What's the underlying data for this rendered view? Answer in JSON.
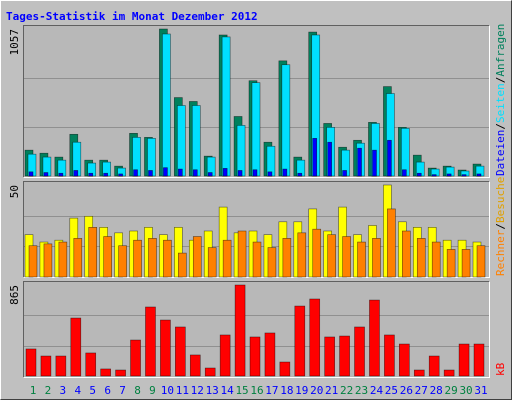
{
  "title": "Tages-Statistik im Monat Dezember 2012",
  "legend_separator": "/",
  "chart_data": [
    {
      "type": "bar",
      "ylim": [
        0,
        1057
      ],
      "yticks": [
        1057
      ],
      "series": [
        {
          "name": "Anfragen",
          "color": "#00805c",
          "values": [
            186,
            164,
            136,
            300,
            114,
            114,
            71,
            307,
            278,
            1057,
            564,
            536,
            143,
            1014,
            428,
            685,
            243,
            828,
            136,
            1035,
            378,
            207,
            257,
            386,
            643,
            350,
            150,
            57,
            71,
            43,
            86
          ]
        },
        {
          "name": "Seiten",
          "color": "#00e0ff",
          "values": [
            157,
            136,
            114,
            243,
            93,
            100,
            57,
            278,
            271,
            1021,
            507,
            507,
            136,
            1000,
            364,
            671,
            214,
            800,
            114,
            1014,
            350,
            186,
            236,
            378,
            593,
            343,
            100,
            50,
            64,
            36,
            71
          ]
        },
        {
          "name": "Dateien",
          "color": "#0000ff",
          "values": [
            30,
            25,
            20,
            40,
            20,
            20,
            15,
            45,
            40,
            60,
            50,
            45,
            25,
            55,
            40,
            45,
            30,
            50,
            20,
            271,
            243,
            40,
            200,
            186,
            257,
            45,
            20,
            10,
            15,
            10,
            15
          ]
        }
      ]
    },
    {
      "type": "bar",
      "ylim": [
        0,
        50
      ],
      "yticks": [
        50
      ],
      "series": [
        {
          "name": "Besuche",
          "color": "#ffff00",
          "text_color": "#e0a000",
          "values": [
            23,
            19,
            20,
            32,
            33,
            27,
            24,
            25,
            27,
            23,
            27,
            20,
            25,
            38,
            24,
            25,
            23,
            30,
            30,
            37,
            25,
            38,
            23,
            28,
            50,
            30,
            27,
            27,
            20,
            20,
            19
          ]
        },
        {
          "name": "Rechner",
          "color": "#ff8000",
          "values": [
            17,
            18,
            19,
            21,
            27,
            22,
            17,
            20,
            21,
            20,
            13,
            22,
            16,
            20,
            25,
            19,
            16,
            21,
            24,
            26,
            23,
            22,
            19,
            21,
            37,
            25,
            21,
            19,
            15,
            15,
            17
          ]
        }
      ]
    },
    {
      "type": "bar",
      "ylim": [
        0,
        865
      ],
      "yticks": [
        865
      ],
      "categories": [
        "1",
        "2",
        "3",
        "4",
        "5",
        "6",
        "7",
        "8",
        "9",
        "10",
        "11",
        "12",
        "13",
        "14",
        "15",
        "16",
        "17",
        "18",
        "19",
        "20",
        "21",
        "22",
        "23",
        "24",
        "25",
        "26",
        "27",
        "28",
        "29",
        "30",
        "31"
      ],
      "category_colors": [
        "#008040",
        "#008040",
        "#0000ff",
        "#0000ff",
        "#0000ff",
        "#0000ff",
        "#0000ff",
        "#008040",
        "#008040",
        "#0000ff",
        "#0000ff",
        "#0000ff",
        "#0000ff",
        "#0000ff",
        "#008040",
        "#008040",
        "#0000ff",
        "#0000ff",
        "#0000ff",
        "#0000ff",
        "#0000ff",
        "#008040",
        "#008040",
        "#0000ff",
        "#0000ff",
        "#0000ff",
        "#0000ff",
        "#0000ff",
        "#008040",
        "#008040",
        "#0000ff"
      ],
      "series": [
        {
          "name": "kB",
          "color": "#ff0000",
          "values": [
            257,
            190,
            190,
            551,
            219,
            67,
            57,
            342,
            656,
            532,
            466,
            200,
            76,
            390,
            865,
            371,
            409,
            133,
            665,
            732,
            371,
            380,
            466,
            722,
            390,
            304,
            57,
            190,
            57,
            304,
            304
          ]
        }
      ]
    }
  ]
}
